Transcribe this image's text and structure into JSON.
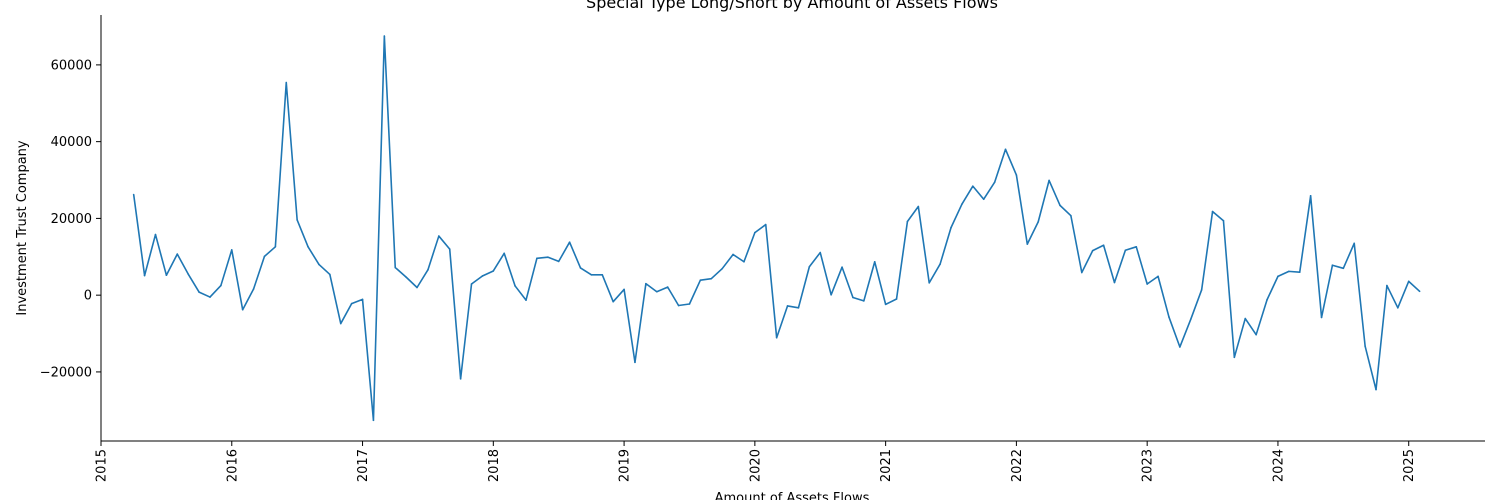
{
  "chart_data": {
    "type": "line",
    "title": "Special Type Long/Short by Amount of Assets Flows",
    "xlabel": "Amount of Assets Flows",
    "ylabel": "Investment Trust Company",
    "x_tick_labels": [
      "2015",
      "2016",
      "2017",
      "2018",
      "2019",
      "2020",
      "2021",
      "2022",
      "2023",
      "2024",
      "2025"
    ],
    "y_tick_values": [
      -20000,
      0,
      20000,
      40000,
      60000
    ],
    "y_tick_labels": [
      "−20000",
      "0",
      "20000",
      "40000",
      "60000"
    ],
    "xlim": [
      "2015-01-01",
      "2025-08-01"
    ],
    "ylim": [
      -38000,
      73000
    ],
    "grid": false,
    "line_color": "#1f77b4",
    "series": [
      {
        "x": [
          "2015-04",
          "2015-05",
          "2015-06",
          "2015-07",
          "2015-08",
          "2015-09",
          "2015-10",
          "2015-11",
          "2015-12",
          "2016-01",
          "2016-02",
          "2016-03",
          "2016-04",
          "2016-05",
          "2016-06",
          "2016-07",
          "2016-08",
          "2016-09",
          "2016-10",
          "2016-11",
          "2016-12",
          "2017-01",
          "2017-02",
          "2017-03",
          "2017-04",
          "2017-05",
          "2017-06",
          "2017-07",
          "2017-08",
          "2017-09",
          "2017-10",
          "2017-11",
          "2017-12",
          "2018-01",
          "2018-02",
          "2018-03",
          "2018-04",
          "2018-05",
          "2018-06",
          "2018-07",
          "2018-08",
          "2018-09",
          "2018-10",
          "2018-11",
          "2018-12",
          "2019-01",
          "2019-02",
          "2019-03",
          "2019-04",
          "2019-05",
          "2019-06",
          "2019-07",
          "2019-08",
          "2019-09",
          "2019-10",
          "2019-11",
          "2019-12",
          "2020-01",
          "2020-02",
          "2020-03",
          "2020-04",
          "2020-05",
          "2020-06",
          "2020-07",
          "2020-08",
          "2020-09",
          "2020-10",
          "2020-11",
          "2020-12",
          "2021-01",
          "2021-02",
          "2021-03",
          "2021-04",
          "2021-05",
          "2021-06",
          "2021-07",
          "2021-08",
          "2021-09",
          "2021-10",
          "2021-11",
          "2021-12",
          "2022-01",
          "2022-02",
          "2022-03",
          "2022-04",
          "2022-05",
          "2022-06",
          "2022-07",
          "2022-08",
          "2022-09",
          "2022-10",
          "2022-11",
          "2022-12",
          "2023-01",
          "2023-02",
          "2023-03",
          "2023-04",
          "2023-05",
          "2023-06",
          "2023-07",
          "2023-08",
          "2023-09",
          "2023-10",
          "2023-11",
          "2023-12",
          "2024-01",
          "2024-02",
          "2024-03",
          "2024-04",
          "2024-05",
          "2024-06",
          "2024-07",
          "2024-08",
          "2024-09",
          "2024-10",
          "2024-11",
          "2024-12",
          "2025-01",
          "2025-02"
        ],
        "values": [
          26200,
          5100,
          15800,
          5200,
          10700,
          5500,
          800,
          -500,
          2500,
          11800,
          -3800,
          1600,
          10100,
          12600,
          55400,
          19600,
          12600,
          8000,
          5400,
          -7400,
          -2200,
          -1100,
          -32600,
          67500,
          7200,
          4700,
          2000,
          6600,
          15400,
          12000,
          -21800,
          2900,
          5000,
          6300,
          10900,
          2400,
          -1300,
          9600,
          9900,
          8800,
          13800,
          7100,
          5300,
          5300,
          -1700,
          1500,
          -17500,
          3000,
          900,
          2100,
          -2700,
          -2300,
          3900,
          4300,
          6900,
          10600,
          8700,
          16300,
          18400,
          -11100,
          -2800,
          -3300,
          7400,
          11100,
          100,
          7300,
          -600,
          -1500,
          8700,
          -2400,
          -1000,
          19200,
          23100,
          3200,
          8100,
          17600,
          23700,
          28400,
          25000,
          29400,
          38000,
          31300,
          13300,
          19100,
          29900,
          23400,
          20700,
          5900,
          11600,
          13000,
          3300,
          11700,
          12600,
          2900,
          4900,
          -5700,
          -13500,
          -6300,
          1400,
          21800,
          19400,
          -16200,
          -6100,
          -10300,
          -1200,
          4900,
          6200,
          6000,
          25900,
          -5800,
          7800,
          7000,
          13500,
          -13300,
          -24600,
          2500,
          -3300,
          3600,
          1000
        ]
      }
    ]
  }
}
